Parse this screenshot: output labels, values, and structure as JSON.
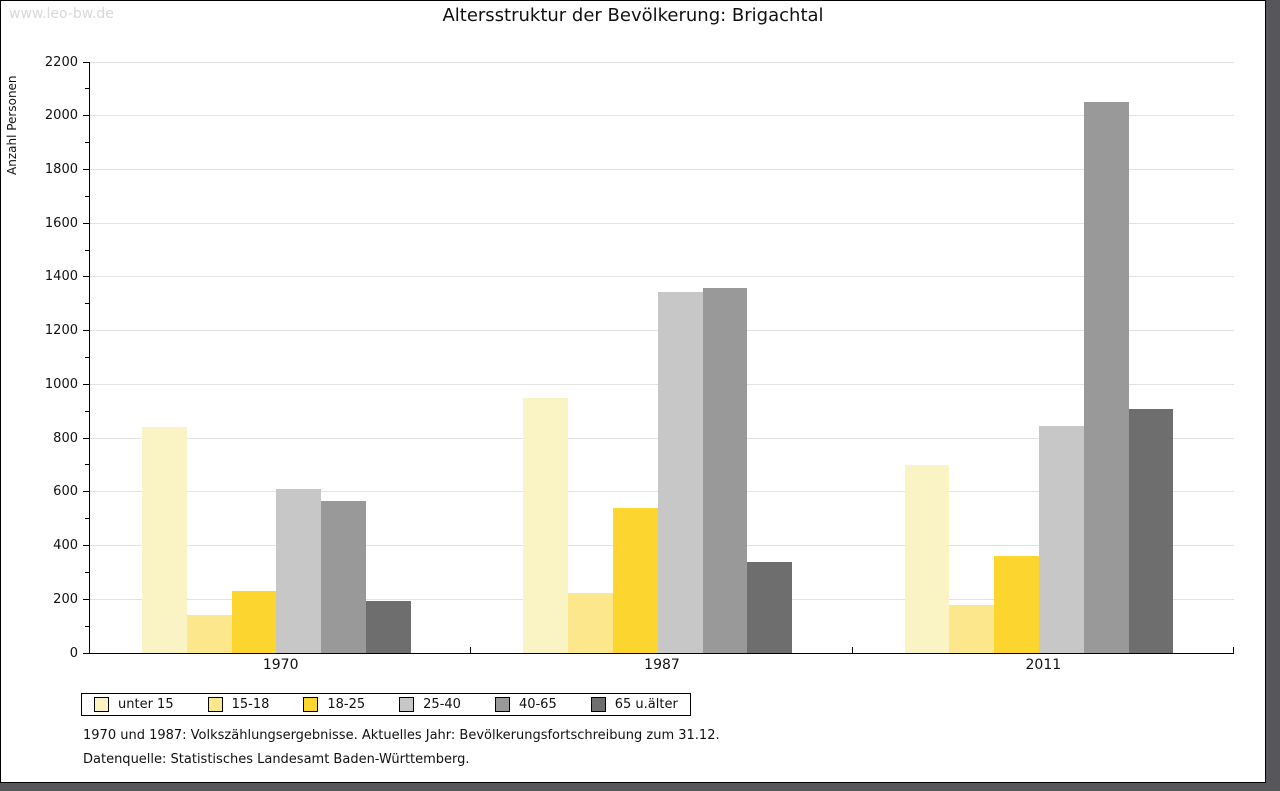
{
  "window": {
    "watermark": "www.leo-bw.de"
  },
  "chart_data": {
    "type": "bar",
    "title": "Altersstruktur der Bevölkerung: Brigachtal",
    "xlabel": "",
    "ylabel": "Anzahl Personen",
    "categories": [
      "1970",
      "1987",
      "2011"
    ],
    "series": [
      {
        "name": "unter 15",
        "color": "#FAF3C3",
        "values": [
          840,
          950,
          700
        ]
      },
      {
        "name": "15-18",
        "color": "#FCE78C",
        "values": [
          140,
          225,
          180
        ]
      },
      {
        "name": "18-25",
        "color": "#FCD62F",
        "values": [
          230,
          540,
          360
        ]
      },
      {
        "name": "25-40",
        "color": "#C7C7C7",
        "values": [
          610,
          1345,
          845
        ]
      },
      {
        "name": "40-65",
        "color": "#999999",
        "values": [
          565,
          1360,
          2050
        ]
      },
      {
        "name": "65 u.älter",
        "color": "#6E6E6E",
        "values": [
          195,
          340,
          910
        ]
      }
    ],
    "ylim": [
      0,
      2200
    ],
    "ytick_step": 200,
    "ytick_minor_step": 100,
    "grid": "horizontal every 200, light gray",
    "legend_position": "bottom-left"
  },
  "footnotes": [
    "1970 und 1987: Volkszählungsergebnisse. Aktuelles Jahr: Bevölkerungsfortschreibung zum 31.12.",
    "Datenquelle: Statistisches Landesamt Baden-Württemberg."
  ]
}
